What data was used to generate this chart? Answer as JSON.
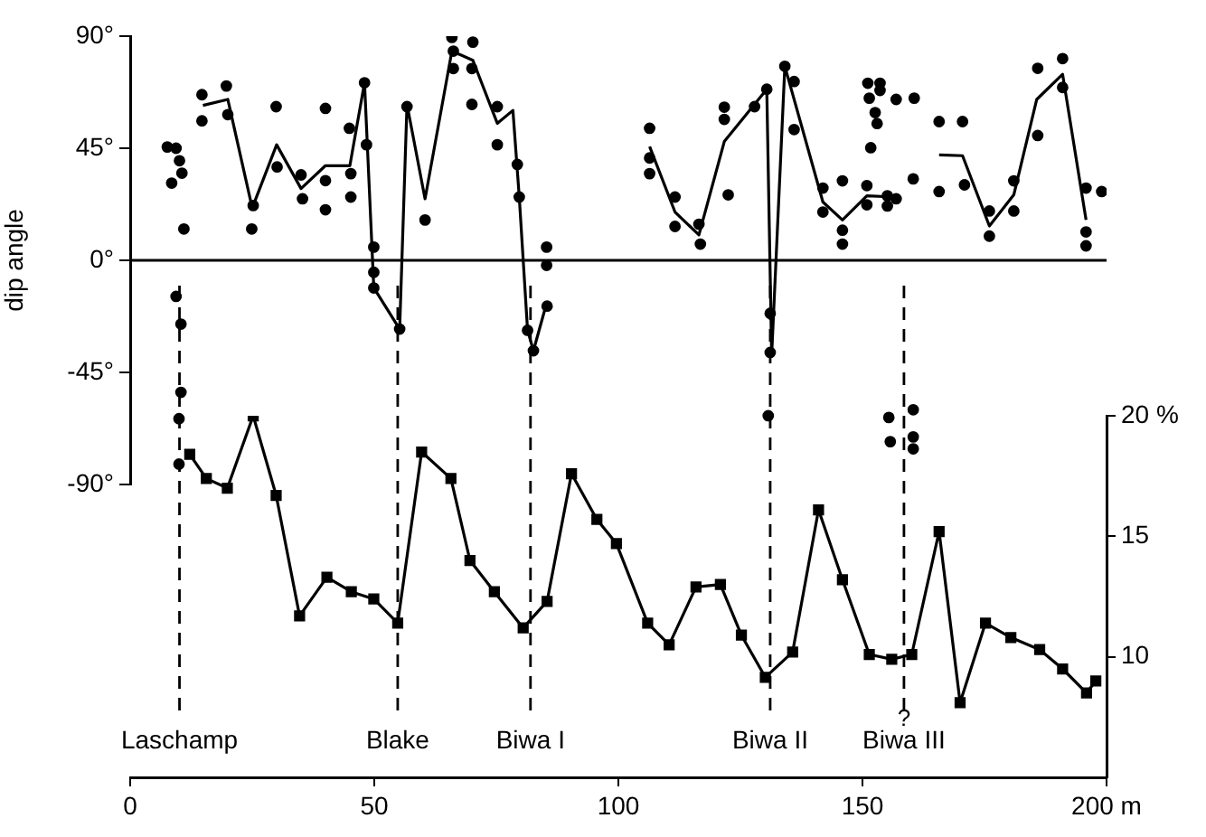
{
  "chart_data": [
    {
      "type": "line",
      "ylabel": "dip angle",
      "xlim": [
        0,
        200
      ],
      "tick_labels": "y",
      "ylim": [
        -90,
        90
      ],
      "yticks": [
        {
          "value": -90,
          "label": "-90°"
        },
        {
          "value": -45,
          "label": "-45°"
        },
        {
          "value": 0,
          "label": "0°"
        },
        {
          "value": 45,
          "label": "45°"
        },
        {
          "value": 90,
          "label": "90°"
        }
      ],
      "grid": false,
      "legend": false,
      "series": [
        {
          "type": "scatter",
          "color": "#000000",
          "marker": "circle",
          "x": [
            7.6,
            9.4,
            8.5,
            10.1,
            10.6,
            11,
            9.4,
            10.4,
            10.4,
            10,
            10,
            14.7,
            14.7,
            19.7,
            20,
            24.9,
            25.2,
            29.9,
            30.1,
            35,
            35.3,
            40,
            40,
            40,
            44.9,
            45.2,
            45.2,
            48,
            48.4,
            49.9,
            49.9,
            49.9,
            55.2,
            56.7,
            60.4,
            65.9,
            66.2,
            66.2,
            70.2,
            70,
            70,
            75.2,
            75.2,
            79.3,
            79.7,
            81.4,
            82.6,
            85.3,
            85.3,
            85.4,
            106.4,
            106.4,
            106.4,
            111.6,
            111.6,
            116.5,
            116.8,
            121.7,
            121.7,
            122.5,
            127.9,
            130.4,
            131.1,
            131.1,
            130.7,
            134.1,
            136,
            136,
            141.9,
            141.9,
            145.9,
            145.9,
            145.9,
            150.9,
            150.9,
            151.1,
            151.4,
            151.7,
            153.6,
            153.6,
            152.6,
            153,
            155.1,
            155.1,
            156.9,
            156.9,
            160.6,
            160.4,
            155.4,
            155.7,
            160.4,
            160.4,
            160.4,
            165.7,
            165.7,
            170.5,
            170.9,
            176,
            176,
            181,
            181,
            185.9,
            185.9,
            191,
            191,
            195.8,
            199,
            195.8,
            195.8
          ],
          "values": [
            45.5,
            45,
            31,
            40,
            35,
            12.6,
            -14.5,
            -25.6,
            -53,
            -63.6,
            -81.8,
            66.5,
            56,
            70,
            58.5,
            12.6,
            22,
            61.7,
            37.5,
            34.3,
            24.7,
            61,
            32,
            20.3,
            53,
            34.8,
            25.4,
            71.3,
            46.4,
            5.3,
            -4.8,
            -11.1,
            -27.6,
            61.7,
            16.2,
            89.5,
            84,
            77,
            87.6,
            77,
            62.6,
            61.7,
            46.4,
            38.5,
            25.4,
            -28.1,
            -36.3,
            5.3,
            -2,
            -18.4,
            53,
            41.1,
            34.8,
            25.4,
            13.6,
            14.5,
            6.5,
            61.5,
            56.6,
            26.3,
            61.7,
            68.7,
            -21.3,
            -37,
            -62.4,
            77.9,
            71.8,
            52.5,
            29,
            19.4,
            31.9,
            12.1,
            6.5,
            30,
            22.3,
            71.1,
            65.1,
            45.2,
            71.1,
            68.2,
            59.3,
            54.9,
            25.9,
            21.8,
            24.7,
            64.6,
            65.1,
            32.7,
            -63.1,
            -72.8,
            -60,
            -70.9,
            -75.7,
            55.7,
            27.6,
            55.7,
            30.3,
            19.8,
            9.7,
            31.9,
            19.8,
            77.1,
            50.1,
            81,
            69.4,
            29,
            27.6,
            11.4,
            5.8
          ]
        },
        {
          "type": "line",
          "color": "#000000",
          "marker": "none",
          "x": [
            14.9,
            20,
            25,
            30,
            35,
            40,
            45,
            48,
            49.9,
            55.2,
            56.7,
            60.4,
            65.9,
            70.2,
            75.2,
            78.4,
            79.7,
            81.4,
            82.6,
            85.4,
            95,
            106.4,
            111.6,
            116.5,
            121.7,
            130.4,
            131.4,
            134.1,
            141.9,
            145.9,
            150.9,
            156.7,
            161,
            165.7,
            170.5,
            176,
            181,
            185.7,
            191,
            195.8
          ],
          "values": [
            62.2,
            64.6,
            21,
            46.4,
            28.8,
            38,
            38,
            71.3,
            -11,
            -27.6,
            62.6,
            24.7,
            84,
            80.3,
            55,
            60.2,
            25.4,
            -28.1,
            -36.3,
            -16.5,
            null,
            45.7,
            19.4,
            10.2,
            47.7,
            68.7,
            -38.2,
            77.9,
            23.4,
            16.2,
            25.9,
            25.4,
            null,
            42.3,
            42,
            13.8,
            26.3,
            64.6,
            74.7,
            16.2
          ]
        }
      ],
      "ref_lines": [
        {
          "axis": "y",
          "value": 0,
          "line_style": "solid"
        }
      ]
    },
    {
      "type": "line",
      "xlim": [
        0,
        200
      ],
      "xticks": [
        0,
        50,
        100,
        150,
        {
          "value": 200,
          "label": "200 m"
        }
      ],
      "y2lim": [
        5,
        20
      ],
      "y2ticks": [
        10,
        15,
        {
          "value": 20,
          "label": "20 %"
        }
      ],
      "grid": false,
      "legend": false,
      "series": [
        {
          "type": "line",
          "axis": "y2",
          "color": "#000000",
          "marker": "square",
          "x": [
            12.2,
            15.6,
            19.9,
            25.2,
            29.9,
            34.7,
            40.3,
            45.3,
            49.9,
            54.8,
            59.7,
            65.7,
            69.6,
            74.6,
            80.5,
            85.4,
            90.4,
            95.6,
            99.6,
            106,
            110.4,
            115.9,
            120.9,
            125.2,
            130.1,
            135.7,
            141,
            145.9,
            151.4,
            156,
            160.1,
            165.7,
            170,
            175.2,
            180.4,
            186.3,
            191,
            195.9,
            197.8
          ],
          "values": [
            18.4,
            17.4,
            17,
            20,
            16.7,
            11.7,
            13.3,
            12.7,
            12.4,
            11.4,
            18.5,
            17.4,
            14,
            12.7,
            11.2,
            12.3,
            17.6,
            15.7,
            14.7,
            11.4,
            10.5,
            12.9,
            13,
            10.9,
            9.15,
            10.2,
            16.1,
            13.2,
            10.1,
            9.9,
            10.1,
            15.2,
            8.1,
            11.4,
            10.8,
            10.3,
            9.5,
            8.5,
            9
          ]
        }
      ],
      "ref_lines": [
        {
          "axis": "x",
          "value": 10.1,
          "label": "Laschamp",
          "line_style": "dashed"
        },
        {
          "axis": "x",
          "value": 54.8,
          "label": "Blake",
          "line_style": "dashed"
        },
        {
          "axis": "x",
          "value": 82,
          "label": "Biwa I",
          "line_style": "dashed"
        },
        {
          "axis": "x",
          "value": 131.1,
          "label": "Biwa II",
          "line_style": "dashed"
        },
        {
          "axis": "x",
          "value": 158.5,
          "label": "Biwa III",
          "line_style": "dashed"
        }
      ],
      "annotations": [
        "?"
      ]
    }
  ]
}
